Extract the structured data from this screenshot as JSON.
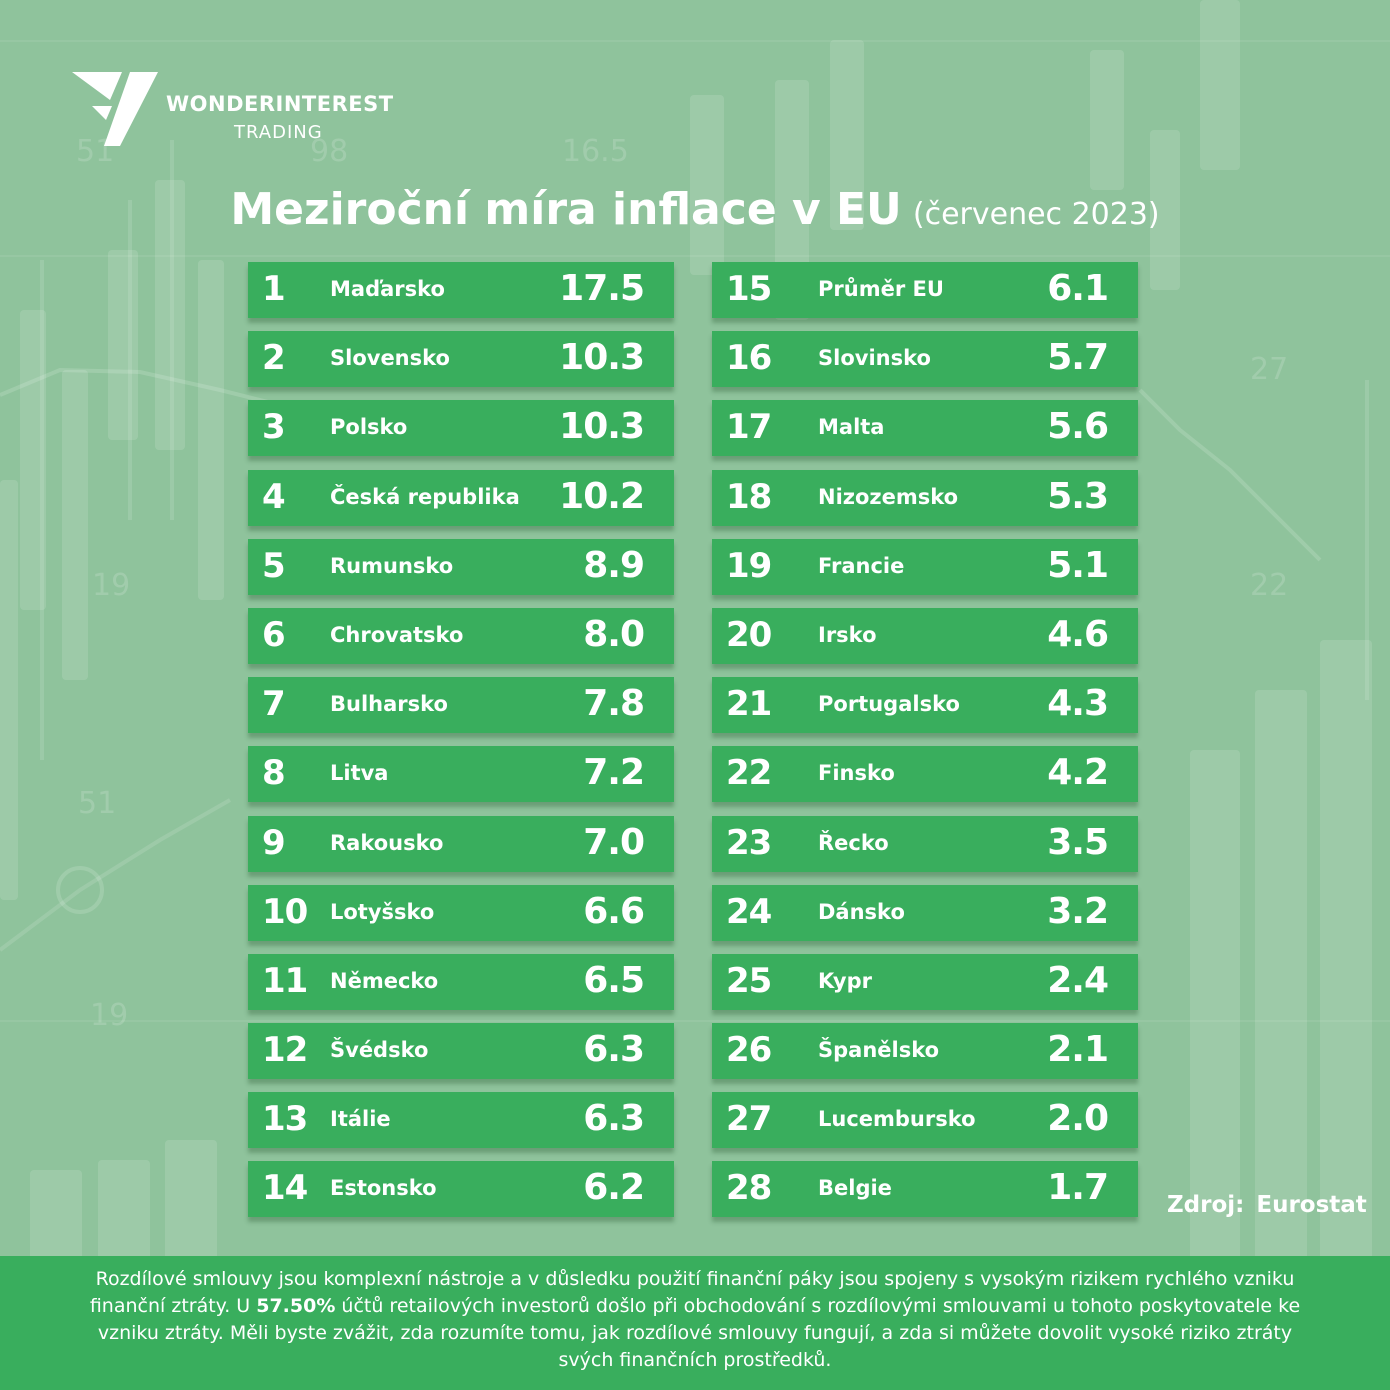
{
  "brand": {
    "name": "WONDERINTEREST",
    "sub": "TRADING"
  },
  "title": {
    "main": "Meziroční míra inflace v EU",
    "sub": "(červenec 2023)"
  },
  "left_rows": [
    {
      "rank": "1",
      "country": "Maďarsko",
      "value": "17.5"
    },
    {
      "rank": "2",
      "country": "Slovensko",
      "value": "10.3"
    },
    {
      "rank": "3",
      "country": "Polsko",
      "value": "10.3"
    },
    {
      "rank": "4",
      "country": "Česká republika",
      "value": "10.2"
    },
    {
      "rank": "5",
      "country": "Rumunsko",
      "value": "8.9"
    },
    {
      "rank": "6",
      "country": "Chrovatsko",
      "value": "8.0"
    },
    {
      "rank": "7",
      "country": "Bulharsko",
      "value": "7.8"
    },
    {
      "rank": "8",
      "country": "Litva",
      "value": "7.2"
    },
    {
      "rank": "9",
      "country": "Rakousko",
      "value": "7.0"
    },
    {
      "rank": "10",
      "country": "Lotyšsko",
      "value": "6.6"
    },
    {
      "rank": "11",
      "country": "Německo",
      "value": "6.5"
    },
    {
      "rank": "12",
      "country": "Švédsko",
      "value": "6.3"
    },
    {
      "rank": "13",
      "country": "Itálie",
      "value": "6.3"
    },
    {
      "rank": "14",
      "country": "Estonsko",
      "value": "6.2"
    }
  ],
  "right_rows": [
    {
      "rank": "15",
      "country": "Průměr EU",
      "value": "6.1"
    },
    {
      "rank": "16",
      "country": "Slovinsko",
      "value": "5.7"
    },
    {
      "rank": "17",
      "country": "Malta",
      "value": "5.6"
    },
    {
      "rank": "18",
      "country": "Nizozemsko",
      "value": "5.3"
    },
    {
      "rank": "19",
      "country": "Francie",
      "value": "5.1"
    },
    {
      "rank": "20",
      "country": "Irsko",
      "value": "4.6"
    },
    {
      "rank": "21",
      "country": "Portugalsko",
      "value": "4.3"
    },
    {
      "rank": "22",
      "country": "Finsko",
      "value": "4.2"
    },
    {
      "rank": "23",
      "country": "Řecko",
      "value": "3.5"
    },
    {
      "rank": "24",
      "country": "Dánsko",
      "value": "3.2"
    },
    {
      "rank": "25",
      "country": "Kypr",
      "value": "2.4"
    },
    {
      "rank": "26",
      "country": "Španělsko",
      "value": "2.1"
    },
    {
      "rank": "27",
      "country": "Lucembursko",
      "value": "2.0"
    },
    {
      "rank": "28",
      "country": "Belgie",
      "value": "1.7"
    }
  ],
  "source": {
    "label": "Zdroj:",
    "value": "Eurostat"
  },
  "disclaimer": {
    "before": "Rozdílové smlouvy jsou komplexní nástroje a v důsledku použití finanční páky jsou spojeny s vysokým rizikem rychlého vzniku finanční ztráty. U ",
    "percent": "57.50%",
    "after": " účtů retailových investorů došlo při obchodování s rozdílovými smlouvami u tohoto poskytovatele ke vzniku ztráty. Měli byste zvážit, zda rozumíte tomu, jak rozdílové smlouvy fungují, a zda si můžete dovolit vysoké riziko ztráty svých finančních prostředků."
  },
  "background_numbers": [
    "51",
    "98",
    "16.5",
    "27",
    "19",
    "22",
    "51",
    "19"
  ],
  "colors": {
    "background": "#8fc39c",
    "row": "#39ae5d",
    "text": "#ffffff"
  }
}
